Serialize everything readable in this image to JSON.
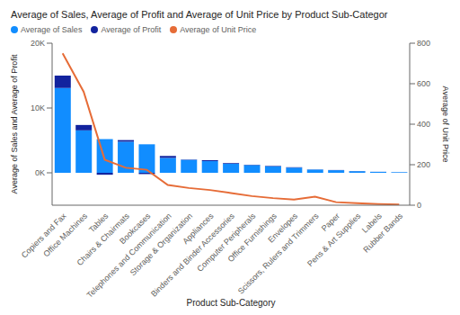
{
  "chart_data": {
    "type": "bar",
    "title": "Average of Sales, Average of Profit and Average of Unit Price by Product Sub-Categor",
    "x_label": "Product Sub-Category",
    "y_label": "Average of Sales and Average of Profit",
    "y2_label": "Average of Unit Price",
    "categories": [
      "Copiers and Fax",
      "Office Machines",
      "Tables",
      "Chairs & Chairmats",
      "Bookcases",
      "Telephones and Communication",
      "Storage & Organization",
      "Appliances",
      "Binders and Binder Accessories",
      "Computer Peripherals",
      "Office Furnishings",
      "Envelopes",
      "Scissors, Rulers and Trimmers",
      "Paper",
      "Pens & Art Supplies",
      "Labels",
      "Rubber Bands"
    ],
    "series": [
      {
        "name": "Average of Sales",
        "color": "#118DFF",
        "values": [
          13100,
          6550,
          5200,
          4800,
          4400,
          2300,
          2000,
          1800,
          1400,
          1200,
          1000,
          800,
          500,
          400,
          250,
          150,
          100
        ]
      },
      {
        "name": "Average of Profit",
        "color": "#12239E",
        "values": [
          1900,
          830,
          -300,
          250,
          -200,
          300,
          50,
          150,
          100,
          50,
          70,
          60,
          20,
          30,
          20,
          10,
          5
        ]
      },
      {
        "name": "Average of Unit Price",
        "color": "#E66C37",
        "type": "line",
        "axis": "y2",
        "values": [
          750,
          560,
          225,
          185,
          175,
          100,
          85,
          75,
          60,
          45,
          35,
          28,
          42,
          15,
          10,
          6,
          3
        ]
      }
    ],
    "stacked": true,
    "ylim": [
      -5000,
      20000
    ],
    "yticks": [
      {
        "value": 0,
        "label": "0K"
      },
      {
        "value": 10000,
        "label": "10K"
      },
      {
        "value": 20000,
        "label": "20K"
      }
    ],
    "y2lim": [
      0,
      800
    ],
    "y2ticks": [
      0,
      200,
      400,
      600,
      800
    ],
    "grid": false,
    "legend": "top-left"
  }
}
